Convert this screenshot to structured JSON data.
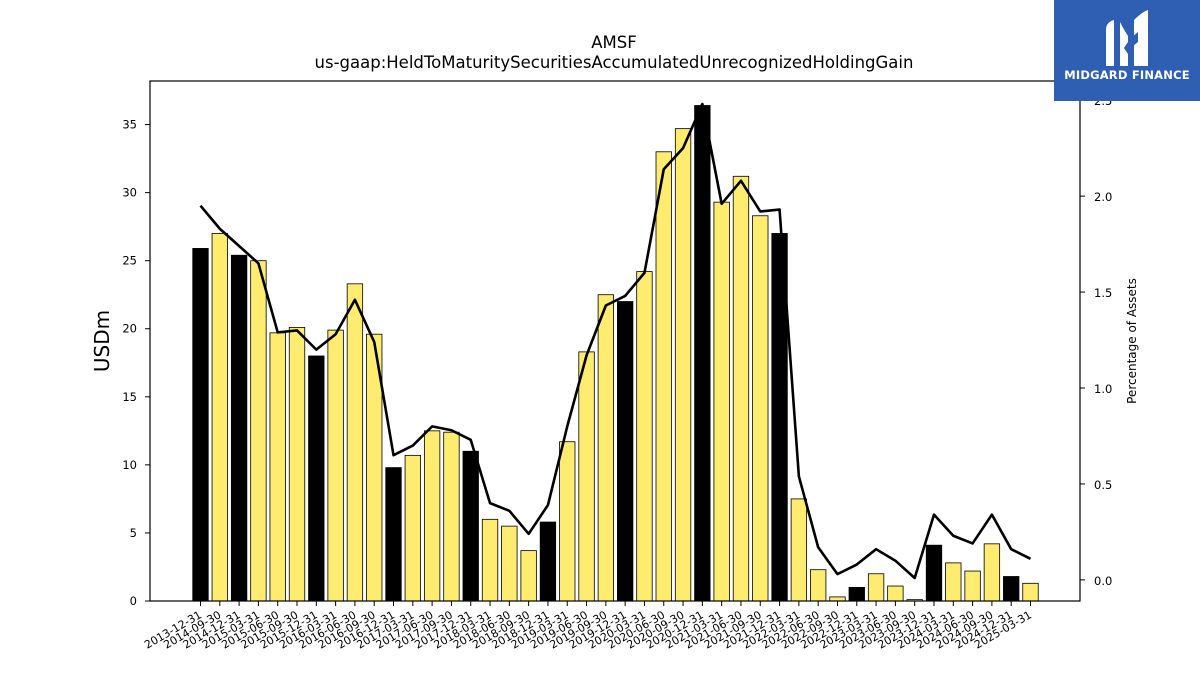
{
  "chart_data": {
    "type": "bar",
    "title": "AMSF",
    "subtitle": "us-gaap:HeldToMaturitySecuritiesAccumulatedUnrecognizedHoldingGain",
    "ylabel": "USDm",
    "y2label": "Percentage of Assets",
    "ylim": [
      0,
      38.2
    ],
    "y2lim": [
      -0.11,
      2.6
    ],
    "yticks": [
      0,
      5,
      10,
      15,
      20,
      25,
      30,
      35
    ],
    "y2ticks": [
      0.0,
      0.5,
      1.0,
      1.5,
      2.0,
      2.5
    ],
    "y2tick_labels": [
      "0.0",
      "0.5",
      "1.0",
      "1.5",
      "2.0",
      "2.5"
    ],
    "grid": false,
    "bar_colors": {
      "q4": "#000000",
      "other": "#fdec6f"
    },
    "line_color": "#000000",
    "categories": [
      "2013-12-31",
      "2014-09-30",
      "2014-12-31",
      "2015-03-31",
      "2015-06-30",
      "2015-09-30",
      "2015-12-31",
      "2016-03-31",
      "2016-06-30",
      "2016-09-30",
      "2016-12-31",
      "2017-03-31",
      "2017-06-30",
      "2017-09-30",
      "2017-12-31",
      "2018-03-31",
      "2018-06-30",
      "2018-09-30",
      "2018-12-31",
      "2019-03-31",
      "2019-06-30",
      "2019-09-30",
      "2019-12-31",
      "2020-03-31",
      "2020-06-30",
      "2020-09-30",
      "2020-12-31",
      "2021-03-31",
      "2021-06-30",
      "2021-09-30",
      "2021-12-31",
      "2022-03-31",
      "2022-06-30",
      "2022-09-30",
      "2022-12-31",
      "2023-03-31",
      "2023-06-30",
      "2023-09-30",
      "2023-12-31",
      "2024-03-31",
      "2024-06-30",
      "2024-09-30",
      "2024-12-31",
      "2025-03-31"
    ],
    "series": [
      {
        "type": "bar",
        "values": [
          25.9,
          27.0,
          25.4,
          25.0,
          19.7,
          20.1,
          18.0,
          19.9,
          23.3,
          19.6,
          9.8,
          10.7,
          12.5,
          12.4,
          11.0,
          6.0,
          5.5,
          3.7,
          5.8,
          11.7,
          18.3,
          22.5,
          22.0,
          24.2,
          33.0,
          34.7,
          36.4,
          29.3,
          31.2,
          28.3,
          27.0,
          7.5,
          2.3,
          0.3,
          1.0,
          2.0,
          1.1,
          0.1,
          4.1,
          2.8,
          2.2,
          4.2,
          1.8,
          1.3
        ]
      },
      {
        "type": "line",
        "axis": "right",
        "values": [
          1.95,
          1.83,
          1.74,
          1.65,
          1.29,
          1.3,
          1.2,
          1.28,
          1.46,
          1.24,
          0.65,
          0.7,
          0.8,
          0.78,
          0.73,
          0.4,
          0.36,
          0.24,
          0.39,
          0.8,
          1.17,
          1.43,
          1.48,
          1.6,
          2.14,
          2.25,
          2.48,
          1.96,
          2.08,
          1.92,
          1.93,
          0.54,
          0.17,
          0.03,
          0.08,
          0.16,
          0.1,
          0.01,
          0.34,
          0.23,
          0.19,
          0.34,
          0.16,
          0.11
        ]
      }
    ]
  },
  "logo": {
    "text": "MIDGARD FINANCE"
  }
}
